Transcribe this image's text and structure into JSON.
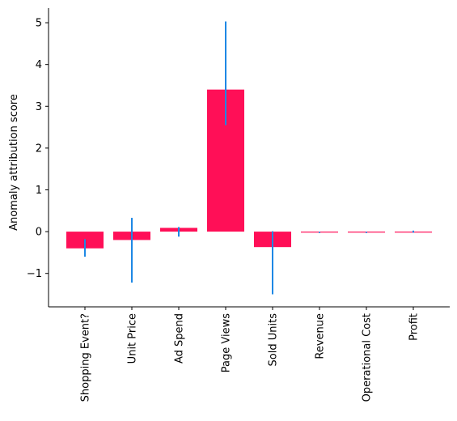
{
  "chart_data": {
    "type": "bar",
    "title": "",
    "xlabel": "",
    "ylabel": "Anomaly attribution score",
    "categories": [
      "Shopping Event?",
      "Unit Price",
      "Ad Spend",
      "Page Views",
      "Sold Units",
      "Revenue",
      "Operational Cost",
      "Profit"
    ],
    "values": [
      -0.4,
      -0.2,
      0.09,
      3.4,
      -0.37,
      -0.02,
      -0.02,
      0.0
    ],
    "error_low": [
      -0.6,
      -1.22,
      -0.12,
      2.55,
      -1.5,
      -0.02,
      -0.02,
      -0.01
    ],
    "error_high": [
      -0.18,
      0.33,
      0.11,
      5.03,
      0.01,
      -0.02,
      -0.02,
      0.01
    ],
    "ylim": [
      -1.8,
      5.35
    ],
    "yticks": [
      -1,
      0,
      1,
      2,
      3,
      4,
      5
    ],
    "ytick_labels": [
      "−1",
      "0",
      "1",
      "2",
      "3",
      "4",
      "5"
    ],
    "bar_color": "#ff0f57",
    "error_color": "#1e88e5",
    "grid": false,
    "legend": "none"
  }
}
